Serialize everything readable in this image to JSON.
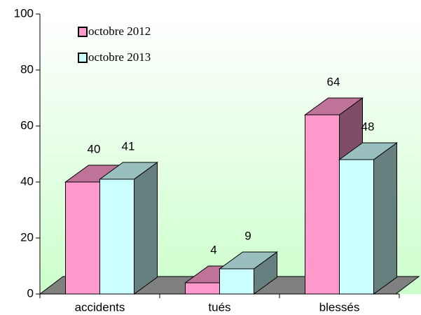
{
  "chart_data": {
    "type": "bar3d",
    "categories": [
      "accidents",
      "tués",
      "blessés"
    ],
    "series": [
      {
        "name": "octobre 2012",
        "color": "#ff99cc",
        "values": [
          40,
          4,
          64
        ]
      },
      {
        "name": "octobre 2013",
        "color": "#ccffff",
        "values": [
          41,
          9,
          48
        ]
      }
    ],
    "ylim": [
      0,
      100
    ],
    "yticks": [
      0,
      20,
      40,
      60,
      80,
      100
    ]
  }
}
